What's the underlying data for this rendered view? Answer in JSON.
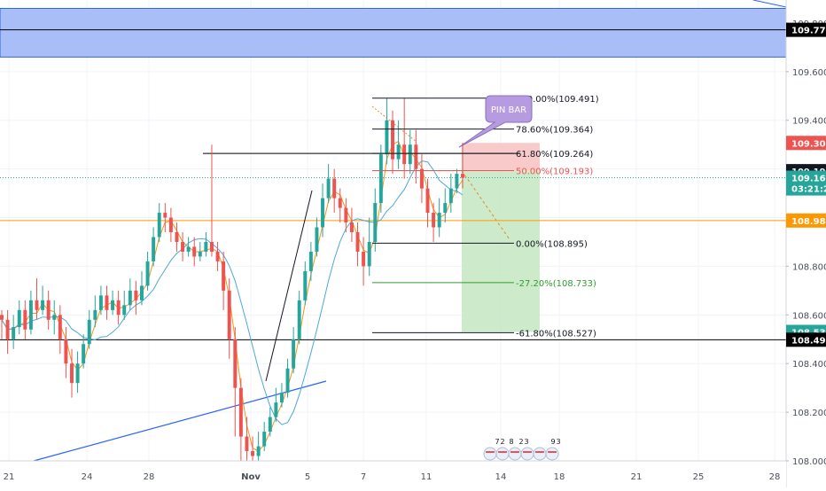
{
  "chart_data": {
    "type": "candlestick",
    "title": "",
    "instrument_hint": "USDJPY-style price chart",
    "x_axis": {
      "labels": [
        "21",
        "24",
        "28",
        "Nov",
        "5",
        "7",
        "11",
        "14",
        "18",
        "21",
        "25",
        "28"
      ]
    },
    "y_axis": {
      "range": [
        108.0,
        109.88
      ],
      "ticks": [
        "108.000",
        "108.200",
        "108.400",
        "108.600",
        "108.800",
        "109.000",
        "109.200",
        "109.400",
        "109.600",
        "109.800"
      ]
    },
    "price_tags": [
      {
        "value": 109.772,
        "label": "109.772",
        "bg": "#000000",
        "fg": "#ffffff"
      },
      {
        "value": 109.307,
        "label": "109.307",
        "bg": "#ef5350",
        "fg": "#ffffff"
      },
      {
        "value": 109.191,
        "label": "109.191",
        "bg": "#131722",
        "fg": "#ffffff"
      },
      {
        "value": 109.164,
        "label": "109.164",
        "bg": "#26a69a",
        "fg": "#ffffff"
      },
      {
        "value": 109.12,
        "label": "03:21:20",
        "bg": "#26a69a",
        "fg": "#ffffff"
      },
      {
        "value": 108.988,
        "label": "108.988",
        "bg": "#ff9800",
        "fg": "#ffffff"
      },
      {
        "value": 108.53,
        "label": "108.530",
        "bg": "#26a69a",
        "fg": "#ffffff"
      },
      {
        "value": 108.498,
        "label": "108.498",
        "bg": "#000000",
        "fg": "#ffffff"
      }
    ],
    "fibonacci_levels": [
      {
        "value": 109.491,
        "label": "100.00%(109.491)",
        "color": "#131722"
      },
      {
        "value": 109.364,
        "label": "78.60%(109.364)",
        "color": "#131722"
      },
      {
        "value": 109.264,
        "label": "61.80%(109.264)",
        "color": "#131722"
      },
      {
        "value": 109.193,
        "label": "50.00%(109.193)",
        "color": "#ef5350"
      },
      {
        "value": 108.895,
        "label": "0.00%(108.895)",
        "color": "#131722"
      },
      {
        "value": 108.733,
        "label": "-27.20%(108.733)",
        "color": "#2e9e2e"
      },
      {
        "value": 108.527,
        "label": "-61.80%(108.527)",
        "color": "#131722"
      }
    ],
    "zones": {
      "resistance_zone": [
        109.66,
        109.86
      ],
      "stop_zone": [
        109.193,
        109.307
      ],
      "target_zone": [
        108.53,
        109.193
      ]
    },
    "horizontal_lines": [
      109.772,
      108.988,
      108.498
    ],
    "annotation": "PIN BAR",
    "event_markers": [
      "7",
      "2",
      "8",
      "2",
      "3",
      "9",
      "3"
    ],
    "colors": {
      "up": "#26a69a",
      "down": "#ef5350",
      "ma_fast": "#f7931a",
      "ma_slow": "#4da8d6",
      "trendline": "#2962ff",
      "zone_blue": "#9ab3f5",
      "zone_red": "#f8c4c4",
      "zone_green": "#c8e9c5",
      "pin_bar_bubble": "#b79be0"
    },
    "candles": [
      [
        108.6,
        108.58,
        108.62,
        108.5
      ],
      [
        108.58,
        108.5,
        108.62,
        108.44
      ],
      [
        108.5,
        108.55,
        108.6,
        108.46
      ],
      [
        108.55,
        108.62,
        108.66,
        108.52
      ],
      [
        108.62,
        108.54,
        108.66,
        108.5
      ],
      [
        108.54,
        108.66,
        108.7,
        108.52
      ],
      [
        108.66,
        108.62,
        108.75,
        108.58
      ],
      [
        108.62,
        108.66,
        108.72,
        108.6
      ],
      [
        108.66,
        108.58,
        108.7,
        108.54
      ],
      [
        108.58,
        108.6,
        108.66,
        108.52
      ],
      [
        108.6,
        108.5,
        108.64,
        108.44
      ],
      [
        108.5,
        108.4,
        108.55,
        108.34
      ],
      [
        108.4,
        108.32,
        108.46,
        108.26
      ],
      [
        108.32,
        108.4,
        108.45,
        108.28
      ],
      [
        108.4,
        108.48,
        108.52,
        108.38
      ],
      [
        108.48,
        108.58,
        108.62,
        108.46
      ],
      [
        108.58,
        108.62,
        108.68,
        108.55
      ],
      [
        108.62,
        108.68,
        108.72,
        108.6
      ],
      [
        108.68,
        108.62,
        108.72,
        108.58
      ],
      [
        108.62,
        108.66,
        108.7,
        108.6
      ],
      [
        108.66,
        108.6,
        108.7,
        108.56
      ],
      [
        108.6,
        108.64,
        108.7,
        108.58
      ],
      [
        108.64,
        108.7,
        108.75,
        108.62
      ],
      [
        108.7,
        108.66,
        108.74,
        108.6
      ],
      [
        108.66,
        108.72,
        108.78,
        108.64
      ],
      [
        108.72,
        108.82,
        108.86,
        108.7
      ],
      [
        108.82,
        108.92,
        108.96,
        108.8
      ],
      [
        108.92,
        109.02,
        109.06,
        108.9
      ],
      [
        109.02,
        109.0,
        109.06,
        108.94
      ],
      [
        109.0,
        108.94,
        109.04,
        108.9
      ],
      [
        108.94,
        108.9,
        108.98,
        108.86
      ],
      [
        108.9,
        108.86,
        108.94,
        108.82
      ],
      [
        108.86,
        108.88,
        108.92,
        108.84
      ],
      [
        108.88,
        108.84,
        108.92,
        108.8
      ],
      [
        108.84,
        108.86,
        108.9,
        108.82
      ],
      [
        108.86,
        108.9,
        108.94,
        108.84
      ],
      [
        108.9,
        108.86,
        109.3,
        108.84
      ],
      [
        108.86,
        108.82,
        108.9,
        108.78
      ],
      [
        108.82,
        108.7,
        108.86,
        108.62
      ],
      [
        108.7,
        108.5,
        108.75,
        108.42
      ],
      [
        108.5,
        108.3,
        108.55,
        108.1
      ],
      [
        108.3,
        108.1,
        108.34,
        108.0
      ],
      [
        108.1,
        108.04,
        108.18,
        108.0
      ],
      [
        108.04,
        108.02,
        108.1,
        108.0
      ],
      [
        108.02,
        108.06,
        108.12,
        108.0
      ],
      [
        108.06,
        108.12,
        108.16,
        108.04
      ],
      [
        108.12,
        108.18,
        108.22,
        108.1
      ],
      [
        108.18,
        108.24,
        108.3,
        108.16
      ],
      [
        108.24,
        108.28,
        108.32,
        108.22
      ],
      [
        108.28,
        108.38,
        108.42,
        108.26
      ],
      [
        108.38,
        108.5,
        108.55,
        108.36
      ],
      [
        108.5,
        108.66,
        108.7,
        108.48
      ],
      [
        108.66,
        108.78,
        108.82,
        108.64
      ],
      [
        108.78,
        108.86,
        108.9,
        108.74
      ],
      [
        108.86,
        108.96,
        109.0,
        108.84
      ],
      [
        108.96,
        109.08,
        109.14,
        108.92
      ],
      [
        109.08,
        109.16,
        109.22,
        109.06
      ],
      [
        109.16,
        109.08,
        109.2,
        109.02
      ],
      [
        109.08,
        109.04,
        109.12,
        108.98
      ],
      [
        109.04,
        108.98,
        109.08,
        108.94
      ],
      [
        108.98,
        108.94,
        109.04,
        108.9
      ],
      [
        108.94,
        108.86,
        108.98,
        108.8
      ],
      [
        108.86,
        108.8,
        108.92,
        108.72
      ],
      [
        108.8,
        108.9,
        109.0,
        108.76
      ],
      [
        108.9,
        109.06,
        109.12,
        108.86
      ],
      [
        109.06,
        109.26,
        109.3,
        109.02
      ],
      [
        109.26,
        109.4,
        109.49,
        109.22
      ],
      [
        109.4,
        109.24,
        109.44,
        109.18
      ],
      [
        109.24,
        109.3,
        109.4,
        109.2
      ],
      [
        109.3,
        109.22,
        109.49,
        109.16
      ],
      [
        109.22,
        109.3,
        109.36,
        109.18
      ],
      [
        109.3,
        109.2,
        109.36,
        109.14
      ],
      [
        109.2,
        109.12,
        109.26,
        109.06
      ],
      [
        109.12,
        109.02,
        109.16,
        108.96
      ],
      [
        109.02,
        108.96,
        109.06,
        108.9
      ],
      [
        108.96,
        109.02,
        109.08,
        108.92
      ],
      [
        109.02,
        109.06,
        109.12,
        108.98
      ],
      [
        109.06,
        109.12,
        109.18,
        109.02
      ],
      [
        109.12,
        109.18,
        109.2,
        109.1
      ],
      [
        109.18,
        109.164,
        109.307,
        109.12
      ]
    ]
  }
}
